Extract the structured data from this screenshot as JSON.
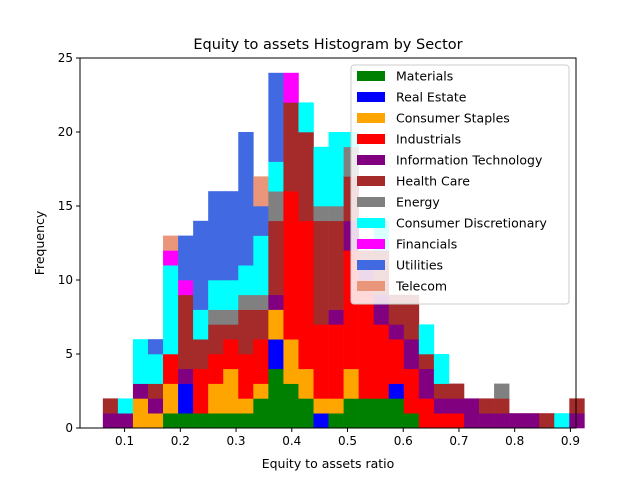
{
  "chart_data": {
    "type": "bar",
    "stacked": true,
    "title": "Equity to assets Histogram by Sector",
    "xlabel": "Equity to assets ratio",
    "ylabel": "Frequency",
    "xlim": [
      0.02,
      0.91
    ],
    "ylim": [
      0,
      25
    ],
    "xticks": [
      "0.1",
      "0.2",
      "0.3",
      "0.4",
      "0.5",
      "0.6",
      "0.7",
      "0.8",
      "0.9"
    ],
    "yticks": [
      "0",
      "5",
      "10",
      "15",
      "20",
      "25"
    ],
    "grid": false,
    "legend_position": "top-right",
    "bin_start": 0.061,
    "bin_width": 0.027,
    "series": [
      {
        "name": "Materials",
        "color": "#008000",
        "values": [
          0,
          0,
          0,
          0,
          1,
          1,
          1,
          1,
          1,
          1,
          2,
          4,
          3,
          2,
          0,
          1,
          2,
          2,
          2,
          2,
          1,
          0,
          0,
          0,
          0,
          0,
          0,
          0,
          0,
          0,
          0,
          0
        ]
      },
      {
        "name": "Real Estate",
        "color": "#0000ff",
        "values": [
          0,
          0,
          0,
          0,
          0,
          2,
          0,
          0,
          0,
          0,
          0,
          2,
          0,
          0,
          1,
          0,
          0,
          0,
          0,
          1,
          0,
          0,
          0,
          0,
          0,
          0,
          0,
          0,
          0,
          0,
          0,
          0
        ]
      },
      {
        "name": "Consumer Staples",
        "color": "#ffa500",
        "values": [
          0,
          0,
          2,
          1,
          2,
          0,
          0,
          2,
          3,
          1,
          1,
          2,
          3,
          2,
          1,
          1,
          2,
          0,
          0,
          0,
          0,
          0,
          0,
          0,
          0,
          0,
          0,
          0,
          0,
          0,
          0,
          0
        ]
      },
      {
        "name": "Industrials",
        "color": "#ff0000",
        "values": [
          0,
          0,
          0,
          0,
          2,
          0,
          3,
          2,
          2,
          3,
          3,
          0,
          10,
          10,
          5,
          5,
          8,
          8,
          5,
          3,
          3,
          2,
          1,
          1,
          0,
          0,
          0,
          0,
          0,
          0,
          0,
          0
        ]
      },
      {
        "name": "Information Technology",
        "color": "#800080",
        "values": [
          1,
          1,
          1,
          1,
          0,
          1,
          0,
          0,
          0,
          0,
          0,
          1,
          0,
          0,
          0,
          1,
          2,
          1,
          2,
          1,
          2,
          2,
          1,
          1,
          2,
          1,
          1,
          1,
          1,
          0,
          0,
          1
        ]
      },
      {
        "name": "Health Care",
        "color": "#a52a2a",
        "values": [
          1,
          0,
          0,
          1,
          0,
          5,
          2,
          2,
          1,
          3,
          2,
          5,
          6,
          6,
          7,
          6,
          3,
          1,
          3,
          2,
          3,
          1,
          1,
          1,
          0,
          1,
          1,
          0,
          0,
          1,
          0,
          1
        ]
      },
      {
        "name": "Energy",
        "color": "#808080",
        "values": [
          0,
          0,
          0,
          0,
          0,
          0,
          0,
          1,
          1,
          1,
          1,
          2,
          0,
          0,
          1,
          1,
          2,
          0,
          0,
          0,
          0,
          0,
          0,
          0,
          0,
          0,
          1,
          0,
          0,
          0,
          0,
          0
        ]
      },
      {
        "name": "Consumer Discretionary",
        "color": "#00ffff",
        "values": [
          0,
          1,
          3,
          2,
          6,
          0,
          2,
          2,
          2,
          2,
          4,
          2,
          0,
          2,
          4,
          5,
          1,
          0,
          2,
          0,
          0,
          2,
          2,
          0,
          0,
          0,
          0,
          0,
          0,
          0,
          1,
          0
        ]
      },
      {
        "name": "Financials",
        "color": "#ff00ff",
        "values": [
          0,
          0,
          0,
          0,
          1,
          1,
          0,
          0,
          0,
          0,
          0,
          0,
          2,
          0,
          0,
          0,
          0,
          0,
          0,
          0,
          0,
          0,
          0,
          0,
          0,
          0,
          0,
          0,
          0,
          0,
          0,
          0
        ]
      },
      {
        "name": "Utilities",
        "color": "#4169e1",
        "values": [
          0,
          0,
          0,
          1,
          0,
          3,
          6,
          6,
          6,
          9,
          2,
          6,
          0,
          0,
          0,
          0,
          0,
          0,
          0,
          0,
          0,
          0,
          0,
          0,
          0,
          0,
          0,
          0,
          0,
          0,
          0,
          0
        ]
      },
      {
        "name": "Telecom",
        "color": "#e9967a",
        "values": [
          0,
          0,
          0,
          0,
          1,
          0,
          0,
          0,
          0,
          0,
          2,
          0,
          0,
          0,
          0,
          0,
          0,
          0,
          0,
          0,
          0,
          0,
          0,
          0,
          0,
          0,
          0,
          0,
          0,
          0,
          0,
          0
        ]
      }
    ]
  }
}
